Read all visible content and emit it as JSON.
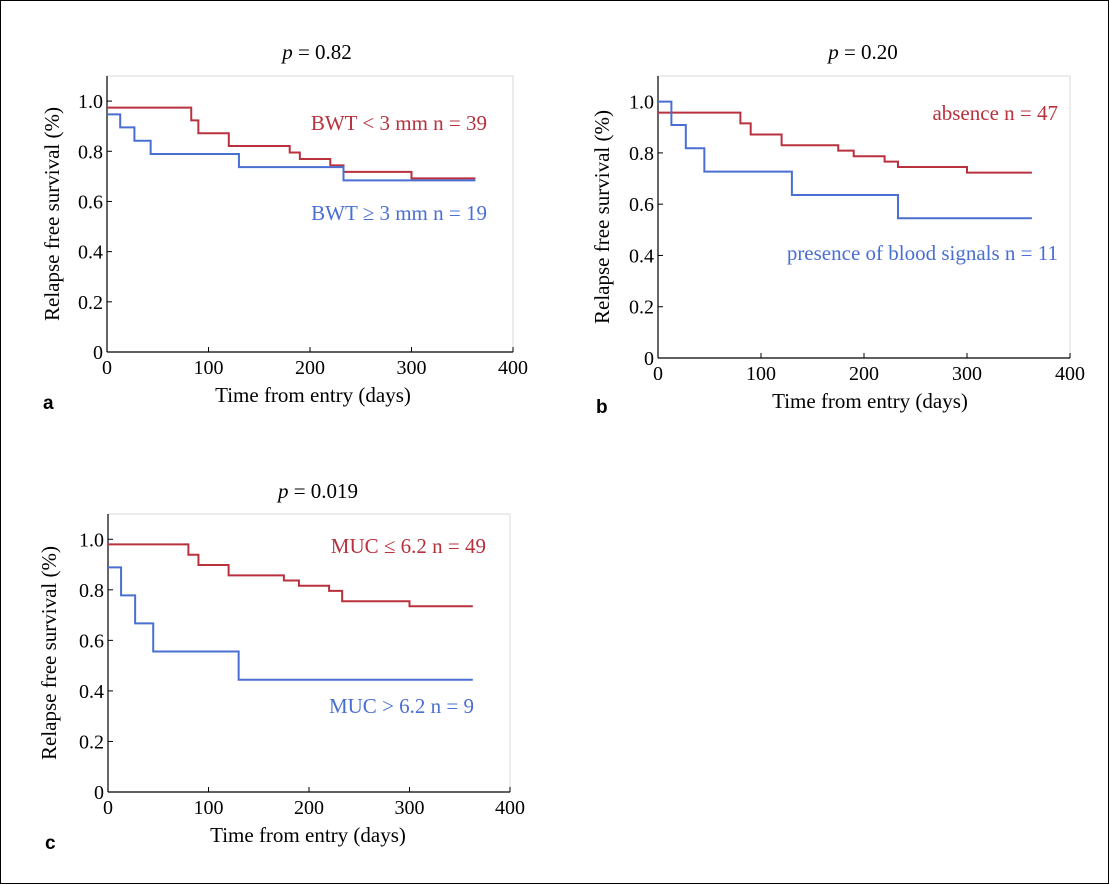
{
  "palette": {
    "red": "#b8313d",
    "blue": "#4a6fd3",
    "axis": "#000000",
    "frame": "#d8d8d8"
  },
  "chart_data": [
    {
      "panel_label": "a",
      "type": "line",
      "step": true,
      "title_italic": "p",
      "title_rest": " = 0.82",
      "xlabel": "Time from entry (days)",
      "ylabel": "Relapse free survival (%)",
      "xlim": [
        0,
        400
      ],
      "ylim": [
        0,
        1.1
      ],
      "xticks": [
        0,
        100,
        200,
        300,
        400
      ],
      "yticks": [
        0,
        0.2,
        0.4,
        0.6,
        0.8,
        1.0
      ],
      "ytick_labels": [
        "0",
        "0.2",
        "0.4",
        "0.6",
        "0.8",
        "1.0"
      ],
      "legend_placement": "in-plot labels",
      "series": [
        {
          "name": "BWT < 3 mm  n = 39",
          "color": "#b8313d",
          "x": [
            0,
            83,
            90,
            120,
            180,
            190,
            220,
            233,
            300,
            363
          ],
          "y": [
            0.974,
            0.923,
            0.872,
            0.821,
            0.795,
            0.769,
            0.744,
            0.718,
            0.692,
            0.692
          ]
        },
        {
          "name": "BWT ≥ 3 mm  n = 19",
          "color": "#4a6fd3",
          "x": [
            0,
            13,
            27,
            43,
            130,
            233,
            363
          ],
          "y": [
            0.947,
            0.895,
            0.842,
            0.789,
            0.737,
            0.684,
            0.684
          ]
        }
      ]
    },
    {
      "panel_label": "b",
      "type": "line",
      "step": true,
      "title_italic": "p",
      "title_rest": " = 0.20",
      "xlabel": "Time from entry (days)",
      "ylabel": "Relapse free survival (%)",
      "xlim": [
        0,
        400
      ],
      "ylim": [
        0,
        1.1
      ],
      "xticks": [
        0,
        100,
        200,
        300,
        400
      ],
      "yticks": [
        0,
        0.2,
        0.4,
        0.6,
        0.8,
        1.0
      ],
      "ytick_labels": [
        "0",
        "0.2",
        "0.4",
        "0.6",
        "0.8",
        "1.0"
      ],
      "legend_placement": "in-plot labels",
      "series": [
        {
          "name": "absence  n = 47",
          "color": "#b8313d",
          "x": [
            0,
            80,
            90,
            120,
            175,
            190,
            220,
            233,
            300,
            363
          ],
          "y": [
            0.957,
            0.915,
            0.872,
            0.83,
            0.809,
            0.787,
            0.766,
            0.745,
            0.723,
            0.723
          ]
        },
        {
          "name": "presence of blood signals  n = 11",
          "color": "#4a6fd3",
          "x": [
            0,
            13,
            27,
            45,
            130,
            233,
            363
          ],
          "y": [
            1.0,
            0.909,
            0.818,
            0.727,
            0.636,
            0.545,
            0.545
          ]
        }
      ]
    },
    {
      "panel_label": "c",
      "type": "line",
      "step": true,
      "title_italic": "p",
      "title_rest": " = 0.019",
      "xlabel": "Time from entry (days)",
      "ylabel": "Relapse free survival (%)",
      "xlim": [
        0,
        400
      ],
      "ylim": [
        0,
        1.1
      ],
      "xticks": [
        0,
        100,
        200,
        300,
        400
      ],
      "yticks": [
        0,
        0.2,
        0.4,
        0.6,
        0.8,
        1.0
      ],
      "ytick_labels": [
        "0",
        "0.2",
        "0.4",
        "0.6",
        "0.8",
        "1.0"
      ],
      "legend_placement": "in-plot labels",
      "series": [
        {
          "name": "MUC ≤ 6.2  n = 49",
          "color": "#b8313d",
          "x": [
            0,
            80,
            90,
            120,
            175,
            190,
            220,
            233,
            300,
            363
          ],
          "y": [
            0.98,
            0.939,
            0.898,
            0.857,
            0.837,
            0.816,
            0.796,
            0.755,
            0.735,
            0.735
          ]
        },
        {
          "name": "MUC > 6.2  n = 9",
          "color": "#4a6fd3",
          "x": [
            0,
            13,
            27,
            45,
            130,
            363
          ],
          "y": [
            0.889,
            0.778,
            0.667,
            0.556,
            0.444,
            0.444
          ]
        }
      ]
    }
  ]
}
